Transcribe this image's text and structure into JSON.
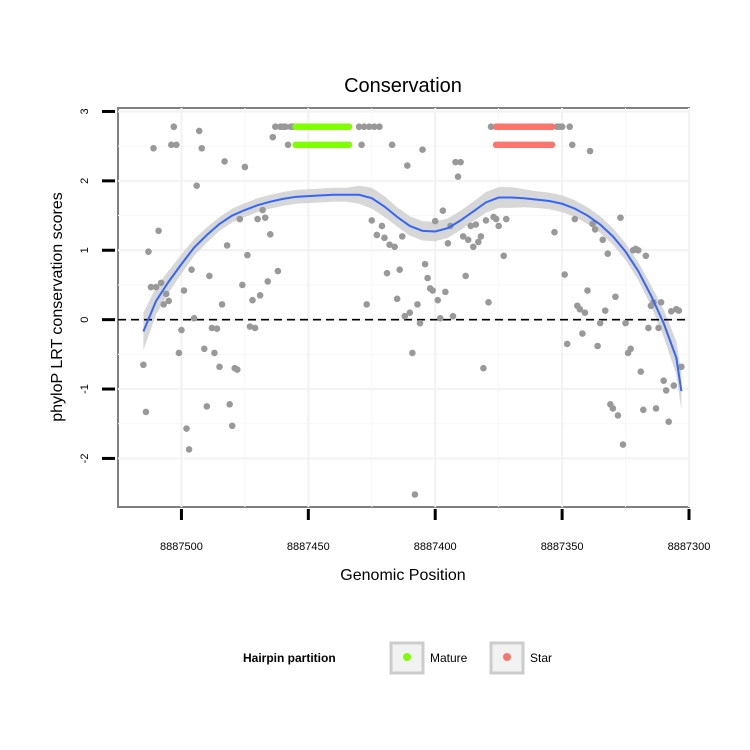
{
  "chart_data": {
    "type": "scatter",
    "title": "Conservation",
    "xlabel": "Genomic Position",
    "ylabel": "phyloP LRT conservation scores",
    "x_reversed": true,
    "xlim": [
      8887300,
      8887525
    ],
    "ylim": [
      -2.7,
      3.05
    ],
    "x_ticks": [
      8887500,
      8887450,
      8887400,
      8887350,
      8887300
    ],
    "y_ticks": [
      -2,
      -1,
      0,
      1,
      2,
      3
    ],
    "reference_line": {
      "y": 0,
      "style": "dashed"
    },
    "grid": true,
    "legend": {
      "title": "Hairpin partition",
      "position": "bottom",
      "entries": [
        {
          "label": "Mature",
          "color": "#7FFF00"
        },
        {
          "label": "Star",
          "color": "#F8766D"
        }
      ]
    },
    "colors": {
      "points": "#999999",
      "smooth": "#3366FF",
      "band": "#D3D3D3"
    },
    "points": [
      [
        8887515,
        -0.65
      ],
      [
        8887514,
        -1.33
      ],
      [
        8887513,
        0.98
      ],
      [
        8887512,
        0.47
      ],
      [
        8887511,
        2.47
      ],
      [
        8887510,
        0.47
      ],
      [
        8887509,
        1.28
      ],
      [
        8887508,
        0.53
      ],
      [
        8887507,
        0.22
      ],
      [
        8887506,
        0.37
      ],
      [
        8887505,
        0.27
      ],
      [
        8887504,
        2.52
      ],
      [
        8887503,
        2.78
      ],
      [
        8887502,
        2.52
      ],
      [
        8887501,
        -0.48
      ],
      [
        8887500,
        -0.15
      ],
      [
        8887499,
        0.42
      ],
      [
        8887498,
        -1.57
      ],
      [
        8887497,
        -1.87
      ],
      [
        8887496,
        0.72
      ],
      [
        8887495,
        0.02
      ],
      [
        8887494,
        1.93
      ],
      [
        8887493,
        2.72
      ],
      [
        8887492,
        2.47
      ],
      [
        8887491,
        -0.42
      ],
      [
        8887490,
        -1.25
      ],
      [
        8887489,
        0.63
      ],
      [
        8887488,
        -0.12
      ],
      [
        8887487,
        -0.48
      ],
      [
        8887486,
        -0.13
      ],
      [
        8887485,
        -0.68
      ],
      [
        8887484,
        0.22
      ],
      [
        8887483,
        2.28
      ],
      [
        8887482,
        1.07
      ],
      [
        8887481,
        -1.22
      ],
      [
        8887480,
        -1.53
      ],
      [
        8887479,
        -0.7
      ],
      [
        8887478,
        -0.72
      ],
      [
        8887477,
        1.45
      ],
      [
        8887476,
        0.5
      ],
      [
        8887475,
        2.2
      ],
      [
        8887474,
        0.93
      ],
      [
        8887473,
        -0.1
      ],
      [
        8887472,
        0.28
      ],
      [
        8887471,
        -0.12
      ],
      [
        8887470,
        1.45
      ],
      [
        8887469,
        0.35
      ],
      [
        8887468,
        1.58
      ],
      [
        8887467,
        1.47
      ],
      [
        8887466,
        0.55
      ],
      [
        8887465,
        1.23
      ],
      [
        8887464,
        2.63
      ],
      [
        8887463,
        2.78
      ],
      [
        8887462,
        0.7
      ],
      [
        8887461,
        2.78
      ],
      [
        8887460,
        2.78
      ],
      [
        8887459,
        2.78
      ],
      [
        8887458,
        2.52
      ],
      [
        8887457,
        2.78
      ],
      [
        8887456,
        2.78
      ],
      [
        8887430,
        2.78
      ],
      [
        8887429,
        2.52
      ],
      [
        8887428,
        2.78
      ],
      [
        8887427,
        0.22
      ],
      [
        8887426,
        2.78
      ],
      [
        8887425,
        1.43
      ],
      [
        8887424,
        2.78
      ],
      [
        8887423,
        1.22
      ],
      [
        8887422,
        2.78
      ],
      [
        8887421,
        1.35
      ],
      [
        8887420,
        1.18
      ],
      [
        8887419,
        0.67
      ],
      [
        8887418,
        1.08
      ],
      [
        8887417,
        2.52
      ],
      [
        8887416,
        1.05
      ],
      [
        8887415,
        0.3
      ],
      [
        8887414,
        0.72
      ],
      [
        8887413,
        1.2
      ],
      [
        8887412,
        0.05
      ],
      [
        8887411,
        2.22
      ],
      [
        8887410,
        0.1
      ],
      [
        8887409,
        -0.48
      ],
      [
        8887408,
        -2.52
      ],
      [
        8887407,
        0.22
      ],
      [
        8887406,
        -0.05
      ],
      [
        8887405,
        2.45
      ],
      [
        8887404,
        0.8
      ],
      [
        8887403,
        0.6
      ],
      [
        8887402,
        0.45
      ],
      [
        8887401,
        0.42
      ],
      [
        8887400,
        1.42
      ],
      [
        8887399,
        0.28
      ],
      [
        8887398,
        0.02
      ],
      [
        8887397,
        1.57
      ],
      [
        8887396,
        0.4
      ],
      [
        8887395,
        1.1
      ],
      [
        8887394,
        1.35
      ],
      [
        8887393,
        0.05
      ],
      [
        8887392,
        2.27
      ],
      [
        8887391,
        2.06
      ],
      [
        8887390,
        2.27
      ],
      [
        8887389,
        1.2
      ],
      [
        8887388,
        0.63
      ],
      [
        8887387,
        1.15
      ],
      [
        8887386,
        1.35
      ],
      [
        8887385,
        1.05
      ],
      [
        8887384,
        1.37
      ],
      [
        8887383,
        1.12
      ],
      [
        8887382,
        1.2
      ],
      [
        8887381,
        -0.7
      ],
      [
        8887380,
        1.43
      ],
      [
        8887379,
        0.25
      ],
      [
        8887378,
        2.78
      ],
      [
        8887377,
        1.48
      ],
      [
        8887376,
        1.45
      ],
      [
        8887375,
        1.35
      ],
      [
        8887374,
        2.78
      ],
      [
        8887373,
        0.92
      ],
      [
        8887372,
        1.45
      ],
      [
        8887355,
        2.78
      ],
      [
        8887354,
        2.78
      ],
      [
        8887353,
        1.26
      ],
      [
        8887352,
        2.78
      ],
      [
        8887351,
        2.78
      ],
      [
        8887350,
        2.78
      ],
      [
        8887349,
        0.65
      ],
      [
        8887348,
        -0.35
      ],
      [
        8887347,
        2.78
      ],
      [
        8887346,
        2.52
      ],
      [
        8887345,
        1.45
      ],
      [
        8887344,
        0.2
      ],
      [
        8887343,
        0.15
      ],
      [
        8887342,
        -0.2
      ],
      [
        8887341,
        0.1
      ],
      [
        8887340,
        0.42
      ],
      [
        8887339,
        2.43
      ],
      [
        8887338,
        1.38
      ],
      [
        8887337,
        1.3
      ],
      [
        8887336,
        -0.38
      ],
      [
        8887335,
        -0.05
      ],
      [
        8887334,
        1.15
      ],
      [
        8887333,
        0.13
      ],
      [
        8887332,
        0.95
      ],
      [
        8887331,
        -1.22
      ],
      [
        8887330,
        -1.28
      ],
      [
        8887329,
        0.33
      ],
      [
        8887328,
        -1.38
      ],
      [
        8887327,
        1.47
      ],
      [
        8887326,
        -1.8
      ],
      [
        8887325,
        -0.05
      ],
      [
        8887324,
        -0.48
      ],
      [
        8887323,
        -0.42
      ],
      [
        8887322,
        1.0
      ],
      [
        8887321,
        1.02
      ],
      [
        8887320,
        1.0
      ],
      [
        8887319,
        -0.75
      ],
      [
        8887318,
        -1.3
      ],
      [
        8887317,
        0.92
      ],
      [
        8887316,
        -0.12
      ],
      [
        8887315,
        0.2
      ],
      [
        8887314,
        0.25
      ],
      [
        8887313,
        -1.28
      ],
      [
        8887312,
        -0.12
      ],
      [
        8887311,
        0.25
      ],
      [
        8887310,
        -0.88
      ],
      [
        8887309,
        -1.02
      ],
      [
        8887308,
        -1.47
      ],
      [
        8887307,
        0.12
      ],
      [
        8887306,
        -0.95
      ],
      [
        8887305,
        0.15
      ],
      [
        8887304,
        0.13
      ],
      [
        8887303,
        -0.68
      ]
    ],
    "mature": {
      "label": "Mature",
      "x_from": 8887434,
      "x_to": 8887455,
      "y": [
        2.78,
        2.52
      ]
    },
    "star": {
      "label": "Star",
      "x_from": 8887354,
      "x_to": 8887376,
      "y": [
        2.78,
        2.52
      ]
    },
    "smooth_fit": [
      [
        8887515,
        -0.17
      ],
      [
        8887510,
        0.27
      ],
      [
        8887505,
        0.55
      ],
      [
        8887500,
        0.8
      ],
      [
        8887495,
        1.04
      ],
      [
        8887490,
        1.22
      ],
      [
        8887485,
        1.38
      ],
      [
        8887480,
        1.5
      ],
      [
        8887475,
        1.58
      ],
      [
        8887470,
        1.65
      ],
      [
        8887465,
        1.7
      ],
      [
        8887460,
        1.74
      ],
      [
        8887455,
        1.77
      ],
      [
        8887450,
        1.78
      ],
      [
        8887445,
        1.79
      ],
      [
        8887440,
        1.8
      ],
      [
        8887435,
        1.8
      ],
      [
        8887430,
        1.8
      ],
      [
        8887425,
        1.75
      ],
      [
        8887420,
        1.63
      ],
      [
        8887415,
        1.48
      ],
      [
        8887410,
        1.35
      ],
      [
        8887405,
        1.28
      ],
      [
        8887400,
        1.27
      ],
      [
        8887395,
        1.32
      ],
      [
        8887390,
        1.43
      ],
      [
        8887385,
        1.56
      ],
      [
        8887380,
        1.69
      ],
      [
        8887375,
        1.76
      ],
      [
        8887370,
        1.76
      ],
      [
        8887365,
        1.75
      ],
      [
        8887360,
        1.73
      ],
      [
        8887355,
        1.71
      ],
      [
        8887350,
        1.67
      ],
      [
        8887345,
        1.6
      ],
      [
        8887340,
        1.5
      ],
      [
        8887335,
        1.37
      ],
      [
        8887330,
        1.2
      ],
      [
        8887325,
        0.98
      ],
      [
        8887320,
        0.7
      ],
      [
        8887315,
        0.35
      ],
      [
        8887310,
        -0.05
      ],
      [
        8887305,
        -0.55
      ],
      [
        8887303,
        -1.03
      ]
    ],
    "band_halfwidth": [
      0.27,
      0.2,
      0.16,
      0.14,
      0.12,
      0.11,
      0.1,
      0.1,
      0.1,
      0.1,
      0.1,
      0.1,
      0.1,
      0.1,
      0.1,
      0.1,
      0.1,
      0.13,
      0.15,
      0.15,
      0.14,
      0.14,
      0.14,
      0.14,
      0.14,
      0.14,
      0.14,
      0.15,
      0.15,
      0.15,
      0.13,
      0.12,
      0.12,
      0.12,
      0.12,
      0.12,
      0.12,
      0.12,
      0.12,
      0.13,
      0.15,
      0.2,
      0.24,
      0.28
    ]
  }
}
